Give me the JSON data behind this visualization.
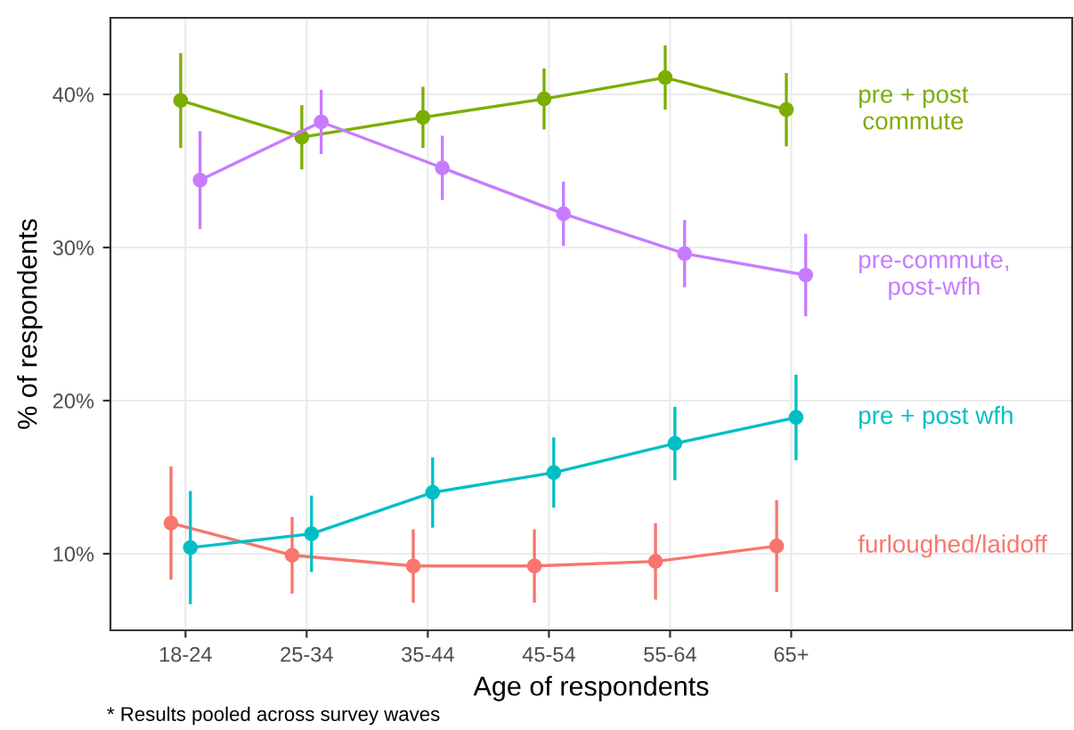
{
  "chart_data": {
    "type": "line",
    "xlabel": "Age of respondents",
    "ylabel": "% of respondents",
    "categories": [
      "18-24",
      "25-34",
      "35-44",
      "45-54",
      "55-64",
      "65+"
    ],
    "series": [
      {
        "name": "furloughed/laidoff",
        "color": "#f8766d",
        "values": [
          12.0,
          9.9,
          9.2,
          9.2,
          9.5,
          10.5
        ],
        "errors": [
          3.6,
          2.4,
          2.3,
          2.3,
          2.4,
          2.9
        ]
      },
      {
        "name": "pre + post commute",
        "color": "#7cae00",
        "values": [
          39.6,
          37.2,
          38.5,
          39.7,
          41.1,
          39.0
        ],
        "errors": [
          3.0,
          2.0,
          1.9,
          1.9,
          2.0,
          2.3
        ]
      },
      {
        "name": "pre + post wfh",
        "color": "#00bfc4",
        "values": [
          10.4,
          11.3,
          14.0,
          15.3,
          17.2,
          18.9
        ],
        "errors": [
          3.6,
          2.4,
          2.2,
          2.2,
          2.3,
          2.7
        ]
      },
      {
        "name": "pre-commute, post-wfh",
        "color": "#c77cff",
        "values": [
          34.4,
          38.2,
          35.2,
          32.2,
          29.6,
          28.2
        ],
        "errors": [
          3.1,
          2.0,
          2.0,
          2.0,
          2.1,
          2.6
        ]
      }
    ],
    "ylim": [
      5,
      45
    ],
    "yticks": [
      {
        "value": 10,
        "label": "10%"
      },
      {
        "value": 20,
        "label": "20%"
      },
      {
        "value": 30,
        "label": "30%"
      },
      {
        "value": 40,
        "label": "40%"
      }
    ],
    "grid": true,
    "marker": "circle",
    "line_style": "solid",
    "annotations": [
      "* Results pooled across survey waves"
    ]
  }
}
